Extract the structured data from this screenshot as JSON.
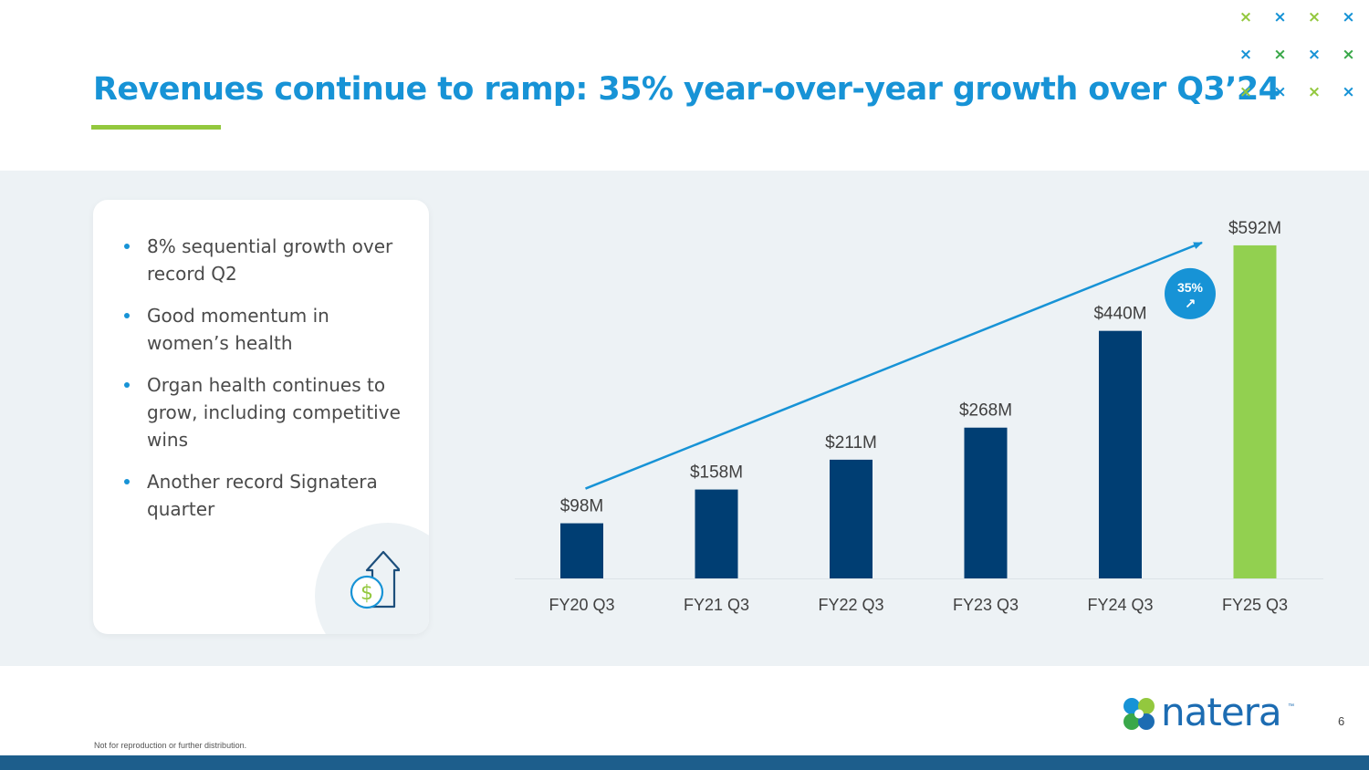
{
  "slide": {
    "title": "Revenues continue to ramp: 35% year-over-year growth over Q3’24",
    "page_number": "6",
    "footnote": "Not for reproduction or further distribution.",
    "logo_text": "natera",
    "logo_tm": "™"
  },
  "bullets": [
    "8% sequential growth over record Q2",
    "Good momentum in women’s health",
    "Organ health continues to grow, including competitive wins",
    "Another record Signatera quarter"
  ],
  "decoration": {
    "x_glyph": "×",
    "x_colors": [
      [
        "#93c83e",
        "#1793d6",
        "#93c83e",
        "#1793d6"
      ],
      [
        "#1793d6",
        "#3aa84a",
        "#1793d6",
        "#3aa84a"
      ],
      [
        "#93c83e",
        "#1793d6",
        "#93c83e",
        "#1793d6"
      ]
    ]
  },
  "colors": {
    "title": "#1793d6",
    "accent_green": "#93c83e",
    "bar_navy": "#003e73",
    "bar_green": "#92d050",
    "trend_line": "#1793d6",
    "badge": "#1793d6"
  },
  "chart_data": {
    "type": "bar",
    "title": "",
    "xlabel": "",
    "ylabel": "",
    "categories": [
      "FY20 Q3",
      "FY21 Q3",
      "FY22 Q3",
      "FY23 Q3",
      "FY24 Q3",
      "FY25 Q3"
    ],
    "values": [
      98,
      158,
      211,
      268,
      440,
      592
    ],
    "value_labels": [
      "$98M",
      "$158M",
      "$211M",
      "$268M",
      "$440M",
      "$592M"
    ],
    "units": "$M",
    "ylim": [
      0,
      600
    ],
    "grid": false,
    "highlight_index": 5,
    "annotation": {
      "type": "growth-arrow",
      "from_category": "FY20 Q3",
      "to_category": "FY25 Q3",
      "badge_text": "35%",
      "badge_icon": "↗"
    }
  }
}
